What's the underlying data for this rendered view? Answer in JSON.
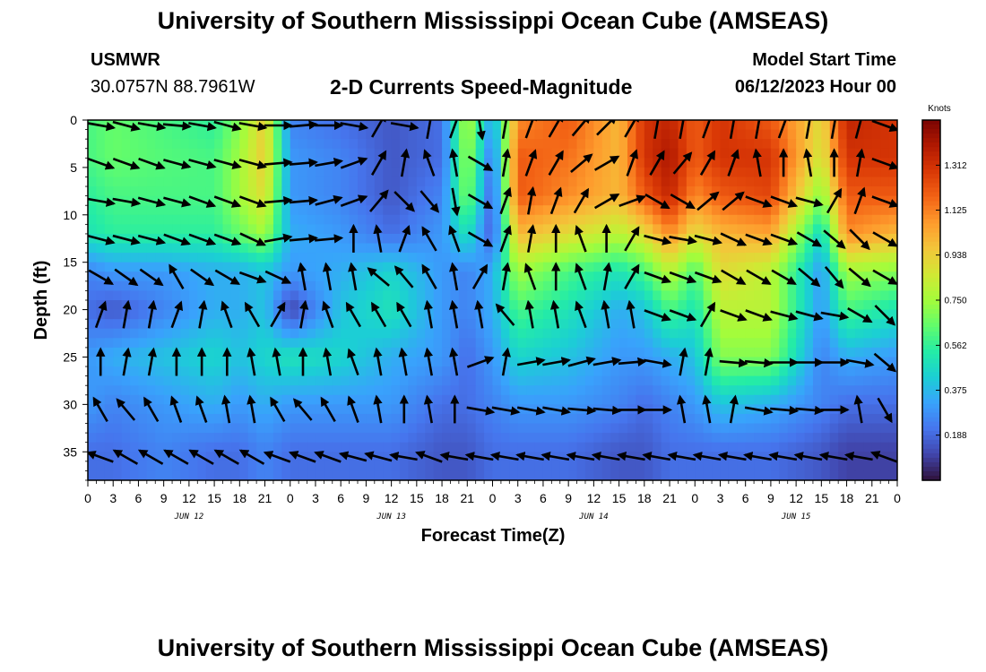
{
  "header": {
    "title": "University of Southern Mississippi Ocean Cube (AMSEAS)",
    "station": "USMWR",
    "coordinates": "30.0757N  88.7961W",
    "subtitle": "2-D Currents Speed-Magnitude",
    "model_start_label": "Model Start Time",
    "model_start_value": "06/12/2023 Hour 00"
  },
  "footer": {
    "title": "University of Southern Mississippi Ocean Cube (AMSEAS)"
  },
  "chart_data": {
    "type": "heatmap",
    "xlabel": "Forecast Time(Z)",
    "ylabel": "Depth (ft)",
    "x_range_hours": [
      0,
      96
    ],
    "y_range_ft": [
      0,
      38
    ],
    "y_reversed": true,
    "x_tick_labels": [
      "0",
      "3",
      "6",
      "9",
      "12",
      "15",
      "18",
      "21",
      "0",
      "3",
      "6",
      "9",
      "12",
      "15",
      "18",
      "21",
      "0",
      "3",
      "6",
      "9",
      "12",
      "15",
      "18",
      "21",
      "0",
      "3",
      "6",
      "9",
      "12",
      "15",
      "18",
      "21",
      "0"
    ],
    "day_labels": [
      "JUN 12",
      "JUN 13",
      "JUN 14",
      "JUN 15"
    ],
    "y_ticks": [
      0,
      5,
      10,
      15,
      20,
      25,
      30,
      35
    ],
    "colorbar": {
      "unit": "Knots",
      "ticks": [
        "1.312",
        "1.125",
        "0.938",
        "0.750",
        "0.562",
        "0.375",
        "0.188"
      ],
      "tick_values": [
        1.312,
        1.125,
        0.938,
        0.75,
        0.562,
        0.375,
        0.188
      ],
      "range": [
        0,
        1.5
      ],
      "colors": [
        "#30123b",
        "#4145ab",
        "#4675ed",
        "#39a2fc",
        "#1bcfd4",
        "#24eca6",
        "#61fc6c",
        "#a4fc3b",
        "#d1e834",
        "#f3c63a",
        "#fe9b2d",
        "#f36315",
        "#d93806",
        "#b11901",
        "#7a0403"
      ]
    },
    "speed_depth_levels_ft": [
      0,
      4,
      8,
      12,
      16,
      20,
      25,
      30,
      35
    ],
    "speed_grid_knots": [
      [
        0.6,
        0.65,
        0.6,
        0.55,
        0.7,
        0.95,
        0.25,
        0.2,
        0.15,
        0.2,
        0.8,
        0.3,
        1.1,
        1.2,
        1.0,
        1.3,
        1.35,
        1.2,
        1.3,
        1.2,
        0.9,
        1.35,
        1.3
      ],
      [
        0.6,
        0.65,
        0.62,
        0.6,
        0.75,
        0.95,
        0.3,
        0.25,
        0.15,
        0.2,
        0.75,
        0.2,
        1.2,
        1.15,
        1.0,
        1.3,
        1.4,
        1.2,
        1.3,
        1.3,
        0.85,
        1.3,
        1.3
      ],
      [
        0.55,
        0.6,
        0.6,
        0.6,
        0.75,
        0.9,
        0.3,
        0.25,
        0.15,
        0.25,
        0.7,
        0.15,
        1.2,
        1.1,
        1.0,
        1.2,
        1.35,
        1.1,
        1.2,
        1.25,
        0.7,
        1.2,
        1.2
      ],
      [
        0.5,
        0.55,
        0.55,
        0.55,
        0.65,
        0.75,
        0.35,
        0.3,
        0.2,
        0.3,
        0.5,
        0.15,
        1.0,
        0.9,
        0.8,
        0.9,
        1.1,
        0.9,
        1.0,
        1.05,
        0.45,
        1.1,
        1.0
      ],
      [
        0.25,
        0.3,
        0.3,
        0.35,
        0.35,
        0.4,
        0.3,
        0.35,
        0.45,
        0.3,
        0.25,
        0.35,
        0.75,
        0.6,
        0.5,
        0.6,
        0.8,
        0.6,
        0.9,
        0.8,
        0.3,
        0.75,
        0.7
      ],
      [
        0.2,
        0.15,
        0.25,
        0.35,
        0.35,
        0.4,
        0.1,
        0.4,
        0.5,
        0.3,
        0.25,
        0.35,
        0.6,
        0.5,
        0.35,
        0.4,
        0.6,
        0.5,
        0.8,
        0.8,
        0.3,
        0.6,
        0.5
      ],
      [
        0.3,
        0.35,
        0.4,
        0.45,
        0.4,
        0.45,
        0.5,
        0.45,
        0.35,
        0.3,
        0.2,
        0.3,
        0.45,
        0.4,
        0.3,
        0.3,
        0.35,
        0.4,
        0.7,
        0.7,
        0.25,
        0.35,
        0.3
      ],
      [
        0.3,
        0.25,
        0.3,
        0.35,
        0.3,
        0.35,
        0.3,
        0.3,
        0.3,
        0.2,
        0.2,
        0.25,
        0.3,
        0.3,
        0.25,
        0.2,
        0.25,
        0.3,
        0.4,
        0.35,
        0.25,
        0.2,
        0.2
      ],
      [
        0.2,
        0.2,
        0.25,
        0.2,
        0.2,
        0.25,
        0.2,
        0.2,
        0.2,
        0.15,
        0.15,
        0.2,
        0.2,
        0.2,
        0.15,
        0.15,
        0.2,
        0.2,
        0.2,
        0.2,
        0.15,
        0.1,
        0.1
      ]
    ],
    "speed_time_columns_hours": [
      0,
      3,
      9,
      15,
      18,
      21,
      24,
      30,
      36,
      42,
      45,
      48,
      51,
      57,
      63,
      66,
      69,
      72,
      75,
      81,
      87,
      90,
      96
    ],
    "arrow_depth_rows_ft": [
      0,
      4,
      8,
      12,
      16,
      20,
      25,
      30,
      35
    ],
    "arrow_time_cols_hours": [
      3,
      6,
      9,
      12,
      15,
      18,
      21,
      24,
      27,
      30,
      33,
      36,
      39,
      42,
      45,
      48,
      51,
      54,
      57,
      60,
      63,
      66,
      69,
      72,
      75,
      78,
      81,
      84,
      87,
      90,
      93,
      96
    ],
    "arrow_direction_deg_cw_from_east": [
      [
        10,
        15,
        10,
        5,
        10,
        15,
        10,
        0,
        -5,
        0,
        10,
        -60,
        10,
        -80,
        -70,
        80,
        -80,
        -70,
        -60,
        -50,
        -45,
        -60,
        -80,
        -80,
        -70,
        -80,
        -80,
        -70,
        -80,
        -80,
        -75,
        20
      ],
      [
        20,
        20,
        20,
        15,
        15,
        15,
        15,
        -5,
        -5,
        -10,
        -20,
        -60,
        -80,
        -110,
        -100,
        30,
        -80,
        -70,
        -60,
        -40,
        -30,
        -70,
        -60,
        -50,
        -60,
        -70,
        -100,
        -90,
        -100,
        -90,
        -80,
        20
      ],
      [
        10,
        10,
        15,
        15,
        20,
        20,
        20,
        -5,
        -5,
        -15,
        -20,
        -50,
        45,
        50,
        80,
        30,
        -70,
        -80,
        -70,
        -60,
        -30,
        -20,
        30,
        30,
        -40,
        -40,
        20,
        20,
        15,
        -60,
        -70,
        20
      ],
      [
        15,
        15,
        15,
        20,
        20,
        20,
        25,
        -10,
        -5,
        -5,
        -90,
        -100,
        -70,
        -120,
        -110,
        30,
        -70,
        -80,
        -90,
        -110,
        -90,
        -60,
        15,
        10,
        15,
        25,
        20,
        20,
        30,
        40,
        45,
        30
      ],
      [
        30,
        35,
        35,
        -120,
        35,
        30,
        20,
        25,
        -100,
        -100,
        -100,
        -140,
        -130,
        -120,
        -100,
        -60,
        -80,
        -110,
        -90,
        -110,
        -80,
        -60,
        20,
        20,
        20,
        30,
        30,
        30,
        40,
        50,
        40,
        30
      ],
      [
        -70,
        -80,
        -80,
        -70,
        -80,
        -110,
        -120,
        -60,
        -80,
        -110,
        -120,
        -120,
        -120,
        -100,
        -100,
        -100,
        -130,
        -100,
        -100,
        -110,
        -100,
        -100,
        20,
        20,
        -60,
        20,
        20,
        15,
        15,
        10,
        30,
        45
      ],
      [
        -90,
        -80,
        -80,
        -90,
        -90,
        -90,
        -100,
        -100,
        -90,
        -100,
        -110,
        -100,
        -100,
        -100,
        -100,
        -20,
        -80,
        -10,
        -10,
        -15,
        -10,
        -5,
        10,
        -80,
        -80,
        5,
        5,
        0,
        0,
        0,
        10,
        40
      ],
      [
        -120,
        -130,
        -120,
        -110,
        -110,
        -100,
        -100,
        -120,
        -130,
        -120,
        -110,
        -100,
        -90,
        -100,
        -90,
        10,
        10,
        10,
        10,
        5,
        5,
        0,
        0,
        -100,
        -100,
        -80,
        10,
        5,
        5,
        0,
        -100,
        60
      ],
      [
        -160,
        -150,
        -150,
        -150,
        -150,
        -150,
        -150,
        -160,
        -160,
        -160,
        -165,
        -165,
        -170,
        -160,
        -170,
        -170,
        -170,
        -170,
        -170,
        -170,
        -170,
        -170,
        -170,
        -170,
        -170,
        -170,
        -170,
        -170,
        -170,
        -170,
        -170,
        -160
      ]
    ]
  }
}
